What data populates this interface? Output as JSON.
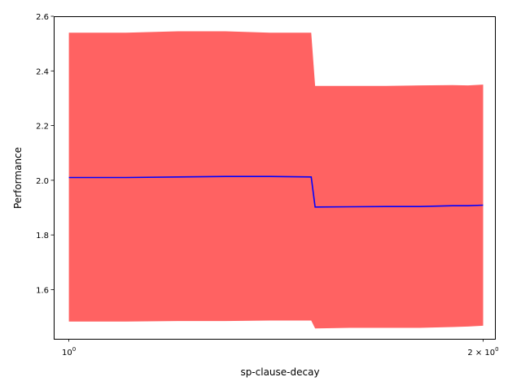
{
  "chart_data": {
    "type": "line",
    "title": "",
    "xlabel": "sp-clause-decay",
    "ylabel": "Performance",
    "xscale": "log",
    "xlim": [
      0.975,
      2.04
    ],
    "ylim": [
      1.42,
      2.6
    ],
    "x_ticks": [
      {
        "value": 1,
        "base": "10",
        "exp": "0",
        "prefix": ""
      },
      {
        "value": 2,
        "base": "10",
        "exp": "0",
        "prefix": "2 × "
      }
    ],
    "y_ticks": [
      {
        "value": 1.6,
        "label": "1.6"
      },
      {
        "value": 1.8,
        "label": "1.8"
      },
      {
        "value": 2.0,
        "label": "2.0"
      },
      {
        "value": 2.2,
        "label": "2.2"
      },
      {
        "value": 2.4,
        "label": "2.4"
      },
      {
        "value": 2.6,
        "label": "2.6"
      }
    ],
    "grid": false,
    "series": [
      {
        "kind": "band",
        "color": "#ff6262",
        "x": [
          1.0,
          1.1,
          1.2,
          1.3,
          1.4,
          1.5,
          1.51,
          1.6,
          1.7,
          1.8,
          1.9,
          1.95,
          2.0
        ],
        "upper": [
          2.54,
          2.54,
          2.545,
          2.545,
          2.54,
          2.54,
          2.345,
          2.345,
          2.345,
          2.347,
          2.348,
          2.347,
          2.35
        ],
        "lower": [
          1.483,
          1.483,
          1.485,
          1.485,
          1.487,
          1.487,
          1.458,
          1.46,
          1.46,
          1.46,
          1.463,
          1.465,
          1.468
        ]
      },
      {
        "kind": "line",
        "color": "#0000ff",
        "x": [
          1.0,
          1.1,
          1.2,
          1.3,
          1.4,
          1.5,
          1.51,
          1.6,
          1.7,
          1.8,
          1.9,
          1.95,
          2.0
        ],
        "y": [
          2.01,
          2.01,
          2.012,
          2.014,
          2.014,
          2.012,
          1.902,
          1.903,
          1.904,
          1.904,
          1.907,
          1.907,
          1.909
        ]
      }
    ]
  }
}
